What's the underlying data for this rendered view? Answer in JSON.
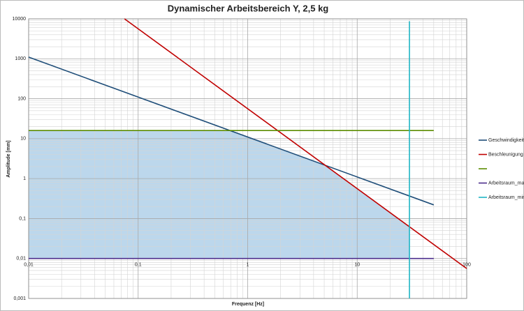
{
  "chart_data": {
    "type": "line",
    "title": "Dynamischer Arbeitsbereich Y, 2,5 kg",
    "x_label": "Frequenz [Hz]",
    "y_label": "Amplitude [mm]",
    "log_x": true,
    "log_y": true,
    "grid": true,
    "legend": "right",
    "xlim": [
      0.01,
      100
    ],
    "xticks": [
      {
        "value": 0.01,
        "label": "0,01"
      },
      {
        "value": 0.1,
        "label": "0,1"
      },
      1,
      10,
      100
    ],
    "ylim": [
      0.001,
      10000
    ],
    "yticks": [
      {
        "value": 0.001,
        "label": "0,001"
      },
      {
        "value": 0.01,
        "label": "0,01"
      },
      {
        "value": 0.1,
        "label": "0,1"
      },
      1,
      10,
      100,
      1000,
      10000
    ],
    "fill": {
      "color": "#bcd7ec",
      "x": [
        0.01,
        0.69,
        5.1,
        30
      ],
      "values": [
        16,
        16,
        2.16,
        0.062
      ]
    },
    "series": [
      {
        "name": "Geschwindigkeit",
        "color": "#1f4e79",
        "x": [
          0.01,
          50
        ],
        "values": [
          1100,
          0.22
        ]
      },
      {
        "name": "Beschleunigung",
        "color": "#c00000",
        "x": [
          0.075,
          100
        ],
        "values": [
          10000,
          0.0056
        ]
      },
      {
        "color": "#5b8c00",
        "x": [
          0.01,
          50
        ],
        "values": [
          16,
          16
        ]
      },
      {
        "name": "Arbeitsraum_max",
        "color": "#4b2c8c",
        "x": [
          0.01,
          50
        ],
        "values": [
          0.01,
          0.01
        ]
      },
      {
        "name": "Arbeitsraum_min",
        "color": "#1fb5c4",
        "x": [
          30,
          30
        ],
        "values": [
          8700,
          0.001
        ]
      }
    ]
  }
}
